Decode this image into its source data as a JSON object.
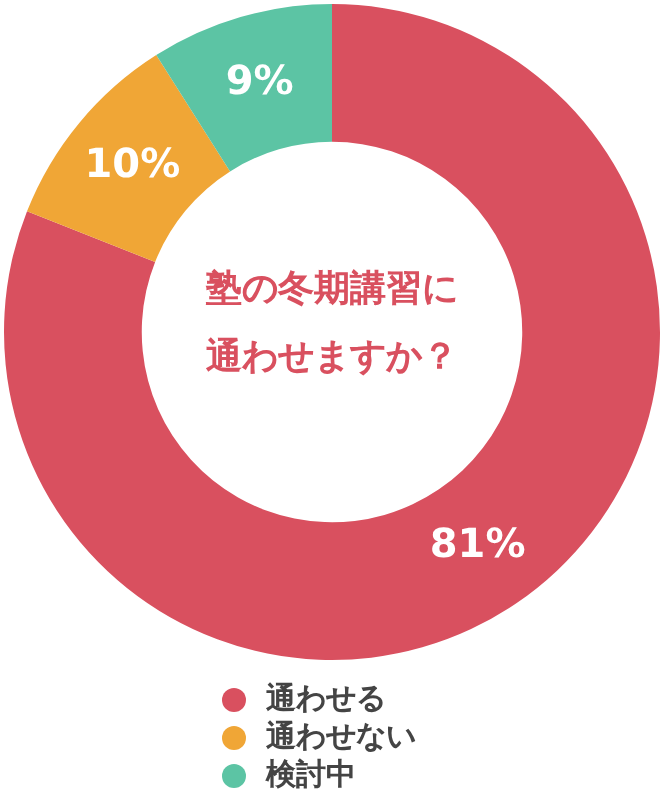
{
  "chart_data": {
    "type": "donut",
    "title": "塾の冬期講習に通わせますか？",
    "categories": [
      "通わせる",
      "通わせない",
      "検討中"
    ],
    "values": [
      81,
      10,
      9
    ],
    "value_labels": [
      "81%",
      "10%",
      "9%"
    ],
    "colors": [
      "#d9505f",
      "#f0a636",
      "#5cc4a4"
    ],
    "legend": "bottom"
  }
}
